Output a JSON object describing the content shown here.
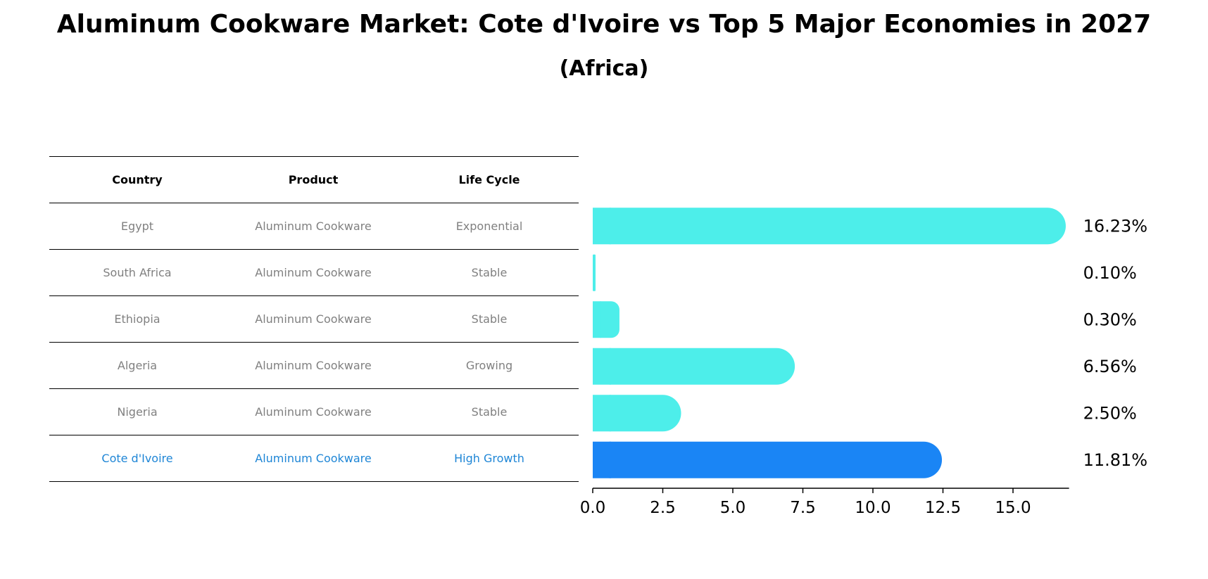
{
  "title": "Aluminum Cookware Market: Cote d'Ivoire vs Top 5 Major Economies in 2027",
  "subtitle": "(Africa)",
  "table": {
    "headers": [
      "Country",
      "Product",
      "Life Cycle"
    ],
    "rows": [
      [
        "Egypt",
        "Aluminum Cookware",
        "Exponential"
      ],
      [
        "South Africa",
        "Aluminum Cookware",
        "Stable"
      ],
      [
        "Ethiopia",
        "Aluminum Cookware",
        "Stable"
      ],
      [
        "Algeria",
        "Aluminum Cookware",
        "Growing"
      ],
      [
        "Nigeria",
        "Aluminum Cookware",
        "Stable"
      ],
      [
        "Cote d'Ivoire",
        "Aluminum Cookware",
        "High Growth"
      ]
    ]
  },
  "colors": {
    "bar": "#4deeea",
    "highlight_bar": "#1a85f5",
    "highlight_text": "#1f86d6",
    "table_text": "#808080"
  },
  "chart_data": {
    "type": "bar",
    "orientation": "horizontal",
    "categories": [
      "Egypt",
      "South Africa",
      "Ethiopia",
      "Algeria",
      "Nigeria",
      "Cote d'Ivoire"
    ],
    "values": [
      16.23,
      0.1,
      0.3,
      6.56,
      2.5,
      11.81
    ],
    "value_labels": [
      "16.23%",
      "0.10%",
      "0.30%",
      "6.56%",
      "2.50%",
      "11.81%"
    ],
    "highlight": "Cote d'Ivoire",
    "xlim": [
      0,
      17
    ],
    "xticks": [
      0.0,
      2.5,
      5.0,
      7.5,
      10.0,
      12.5,
      15.0
    ],
    "xtick_labels": [
      "0.0",
      "2.5",
      "5.0",
      "7.5",
      "10.0",
      "12.5",
      "15.0"
    ],
    "grid": false
  }
}
